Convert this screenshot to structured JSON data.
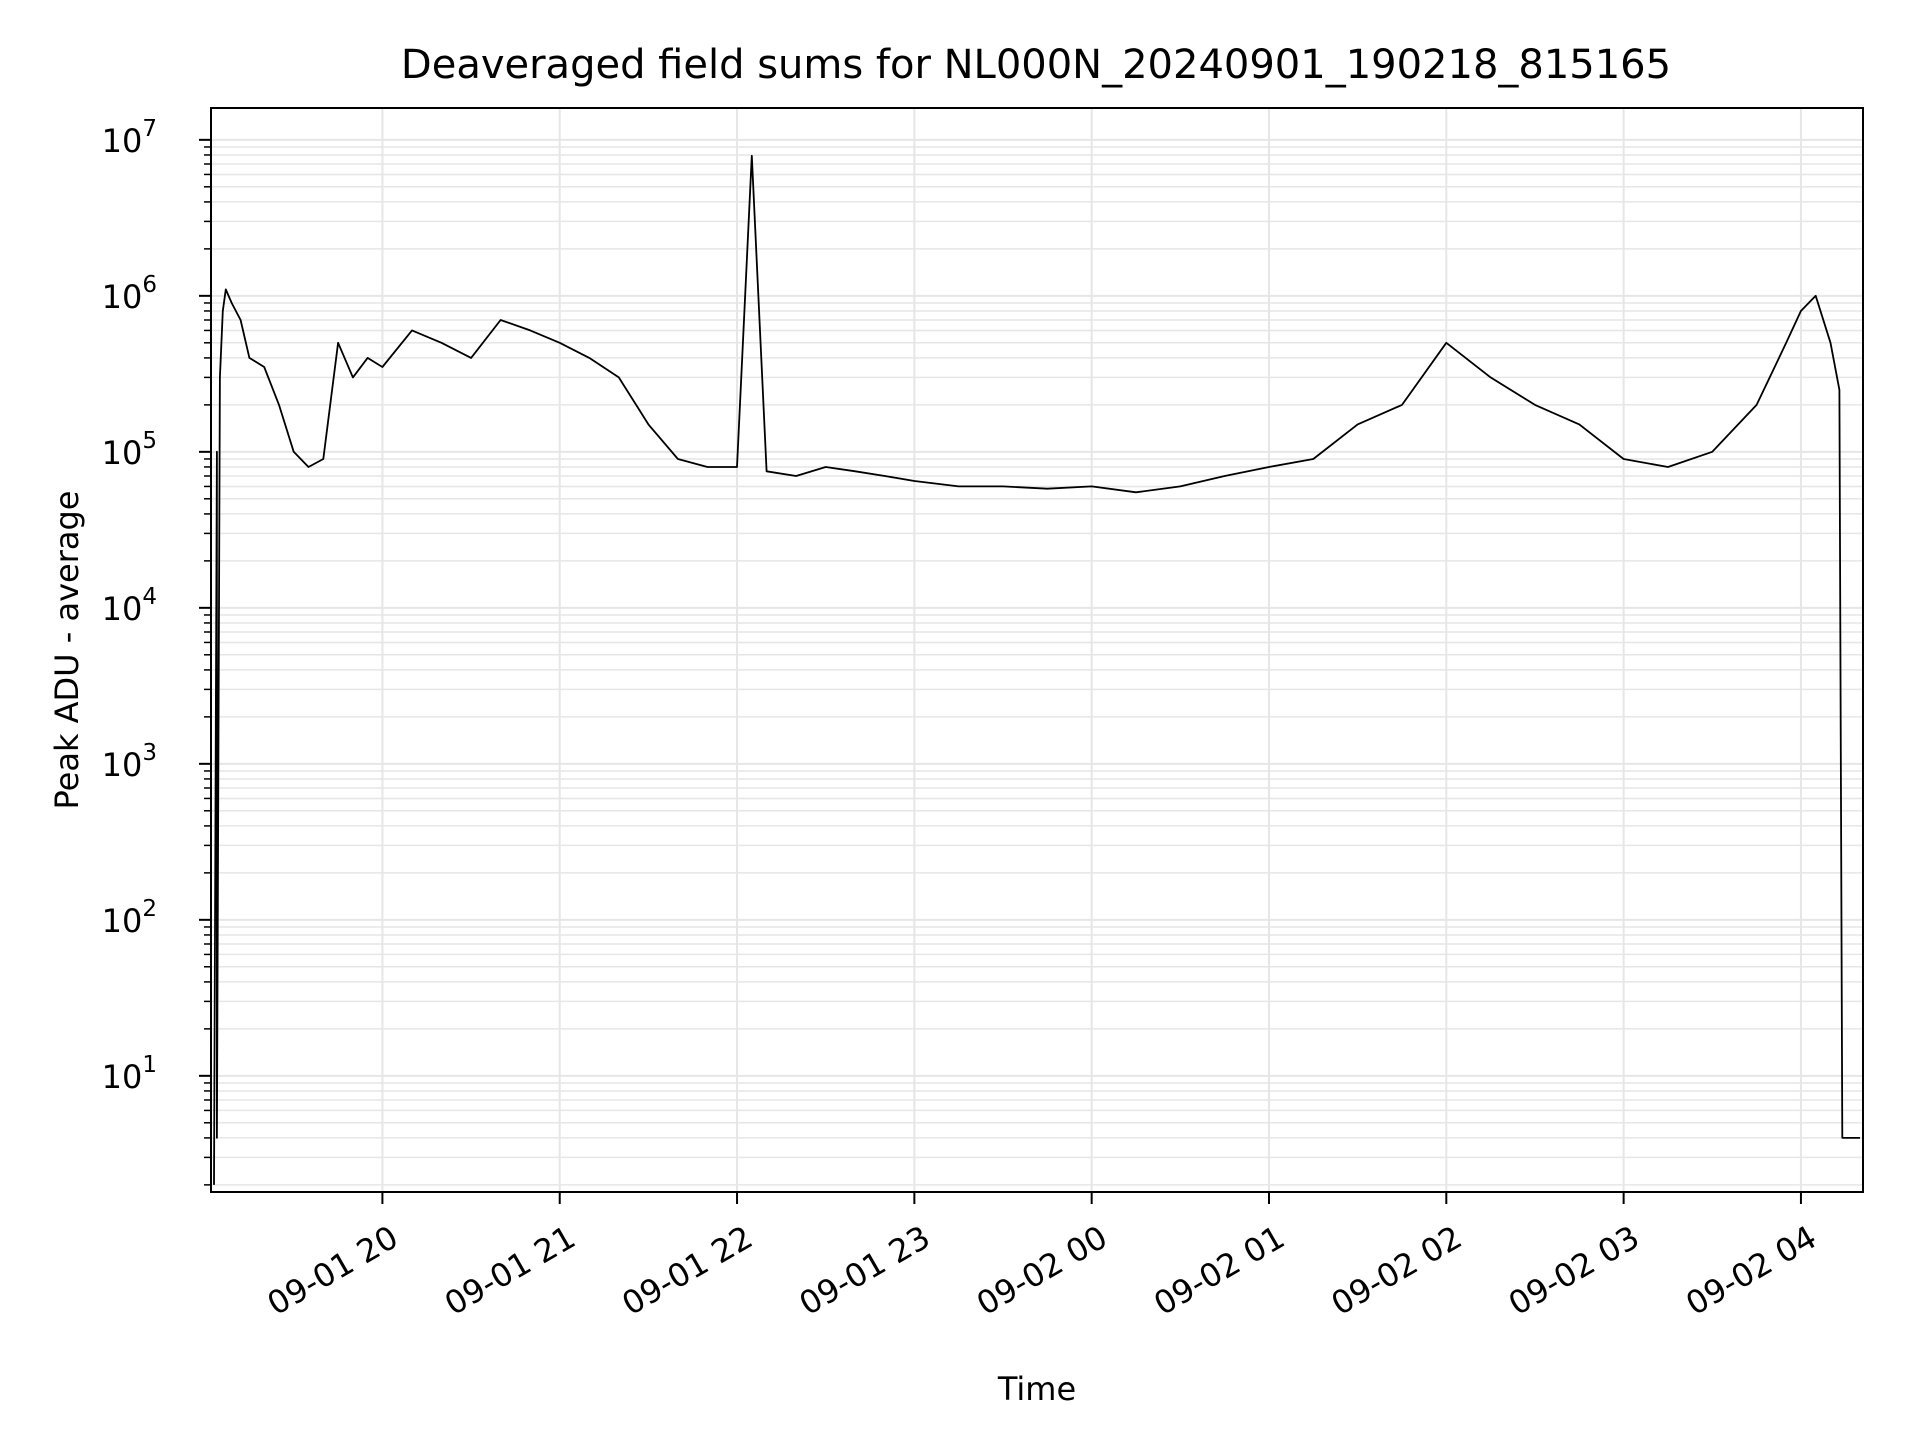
{
  "chart_data": {
    "type": "line",
    "title": "Deaveraged field sums for NL000N_20240901_190218_815165",
    "xlabel": "Time",
    "ylabel": "Peak ADU - average",
    "yscale": "log",
    "ylim": [
      1.8,
      16000000
    ],
    "xlim": [
      "2024-09-01 19:02",
      "2024-09-02 04:21"
    ],
    "grid": "on",
    "legend": "none",
    "line_color": "#000000",
    "x_ticks": [
      "09-01 20",
      "09-01 21",
      "09-01 22",
      "09-01 23",
      "09-02 00",
      "09-02 01",
      "09-02 02",
      "09-02 03",
      "09-02 04"
    ],
    "y_ticks": [
      {
        "value": 10,
        "base": "10",
        "exp": "1"
      },
      {
        "value": 100,
        "base": "10",
        "exp": "2"
      },
      {
        "value": 1000,
        "base": "10",
        "exp": "3"
      },
      {
        "value": 10000,
        "base": "10",
        "exp": "4"
      },
      {
        "value": 100000,
        "base": "10",
        "exp": "5"
      },
      {
        "value": 1000000,
        "base": "10",
        "exp": "6"
      },
      {
        "value": 10000000,
        "base": "10",
        "exp": "7"
      }
    ],
    "series": [
      {
        "x": [
          "2024-09-01 19:03",
          "2024-09-01 19:04",
          "2024-09-01 19:04",
          "2024-09-01 19:05",
          "2024-09-01 19:06",
          "2024-09-01 19:07",
          "2024-09-01 19:09",
          "2024-09-01 19:12",
          "2024-09-01 19:15",
          "2024-09-01 19:20",
          "2024-09-01 19:25",
          "2024-09-01 19:30",
          "2024-09-01 19:35",
          "2024-09-01 19:40",
          "2024-09-01 19:45",
          "2024-09-01 19:50",
          "2024-09-01 19:55",
          "2024-09-01 20:00",
          "2024-09-01 20:10",
          "2024-09-01 20:20",
          "2024-09-01 20:30",
          "2024-09-01 20:40",
          "2024-09-01 20:50",
          "2024-09-01 21:00",
          "2024-09-01 21:10",
          "2024-09-01 21:20",
          "2024-09-01 21:30",
          "2024-09-01 21:40",
          "2024-09-01 21:50",
          "2024-09-01 22:00",
          "2024-09-01 22:05",
          "2024-09-01 22:10",
          "2024-09-01 22:20",
          "2024-09-01 22:30",
          "2024-09-01 22:40",
          "2024-09-01 22:50",
          "2024-09-01 23:00",
          "2024-09-01 23:15",
          "2024-09-01 23:30",
          "2024-09-01 23:45",
          "2024-09-02 00:00",
          "2024-09-02 00:15",
          "2024-09-02 00:30",
          "2024-09-02 00:45",
          "2024-09-02 01:00",
          "2024-09-02 01:15",
          "2024-09-02 01:30",
          "2024-09-02 01:45",
          "2024-09-02 02:00",
          "2024-09-02 02:15",
          "2024-09-02 02:30",
          "2024-09-02 02:45",
          "2024-09-02 03:00",
          "2024-09-02 03:15",
          "2024-09-02 03:30",
          "2024-09-02 03:45",
          "2024-09-02 03:55",
          "2024-09-02 04:00",
          "2024-09-02 04:05",
          "2024-09-02 04:10",
          "2024-09-02 04:13",
          "2024-09-02 04:14",
          "2024-09-02 04:20"
        ],
        "y": [
          2,
          100000,
          4,
          300000,
          800000,
          1100000,
          900000,
          700000,
          400000,
          350000,
          200000,
          100000,
          80000,
          90000,
          500000,
          300000,
          400000,
          350000,
          600000,
          500000,
          400000,
          700000,
          600000,
          500000,
          400000,
          300000,
          150000,
          90000,
          80000,
          80000,
          7900000,
          75000,
          70000,
          80000,
          75000,
          70000,
          65000,
          60000,
          60000,
          58000,
          60000,
          55000,
          60000,
          70000,
          80000,
          90000,
          150000,
          200000,
          500000,
          300000,
          200000,
          150000,
          90000,
          80000,
          100000,
          200000,
          500000,
          800000,
          1000000,
          500000,
          250000,
          4,
          4
        ]
      }
    ]
  }
}
